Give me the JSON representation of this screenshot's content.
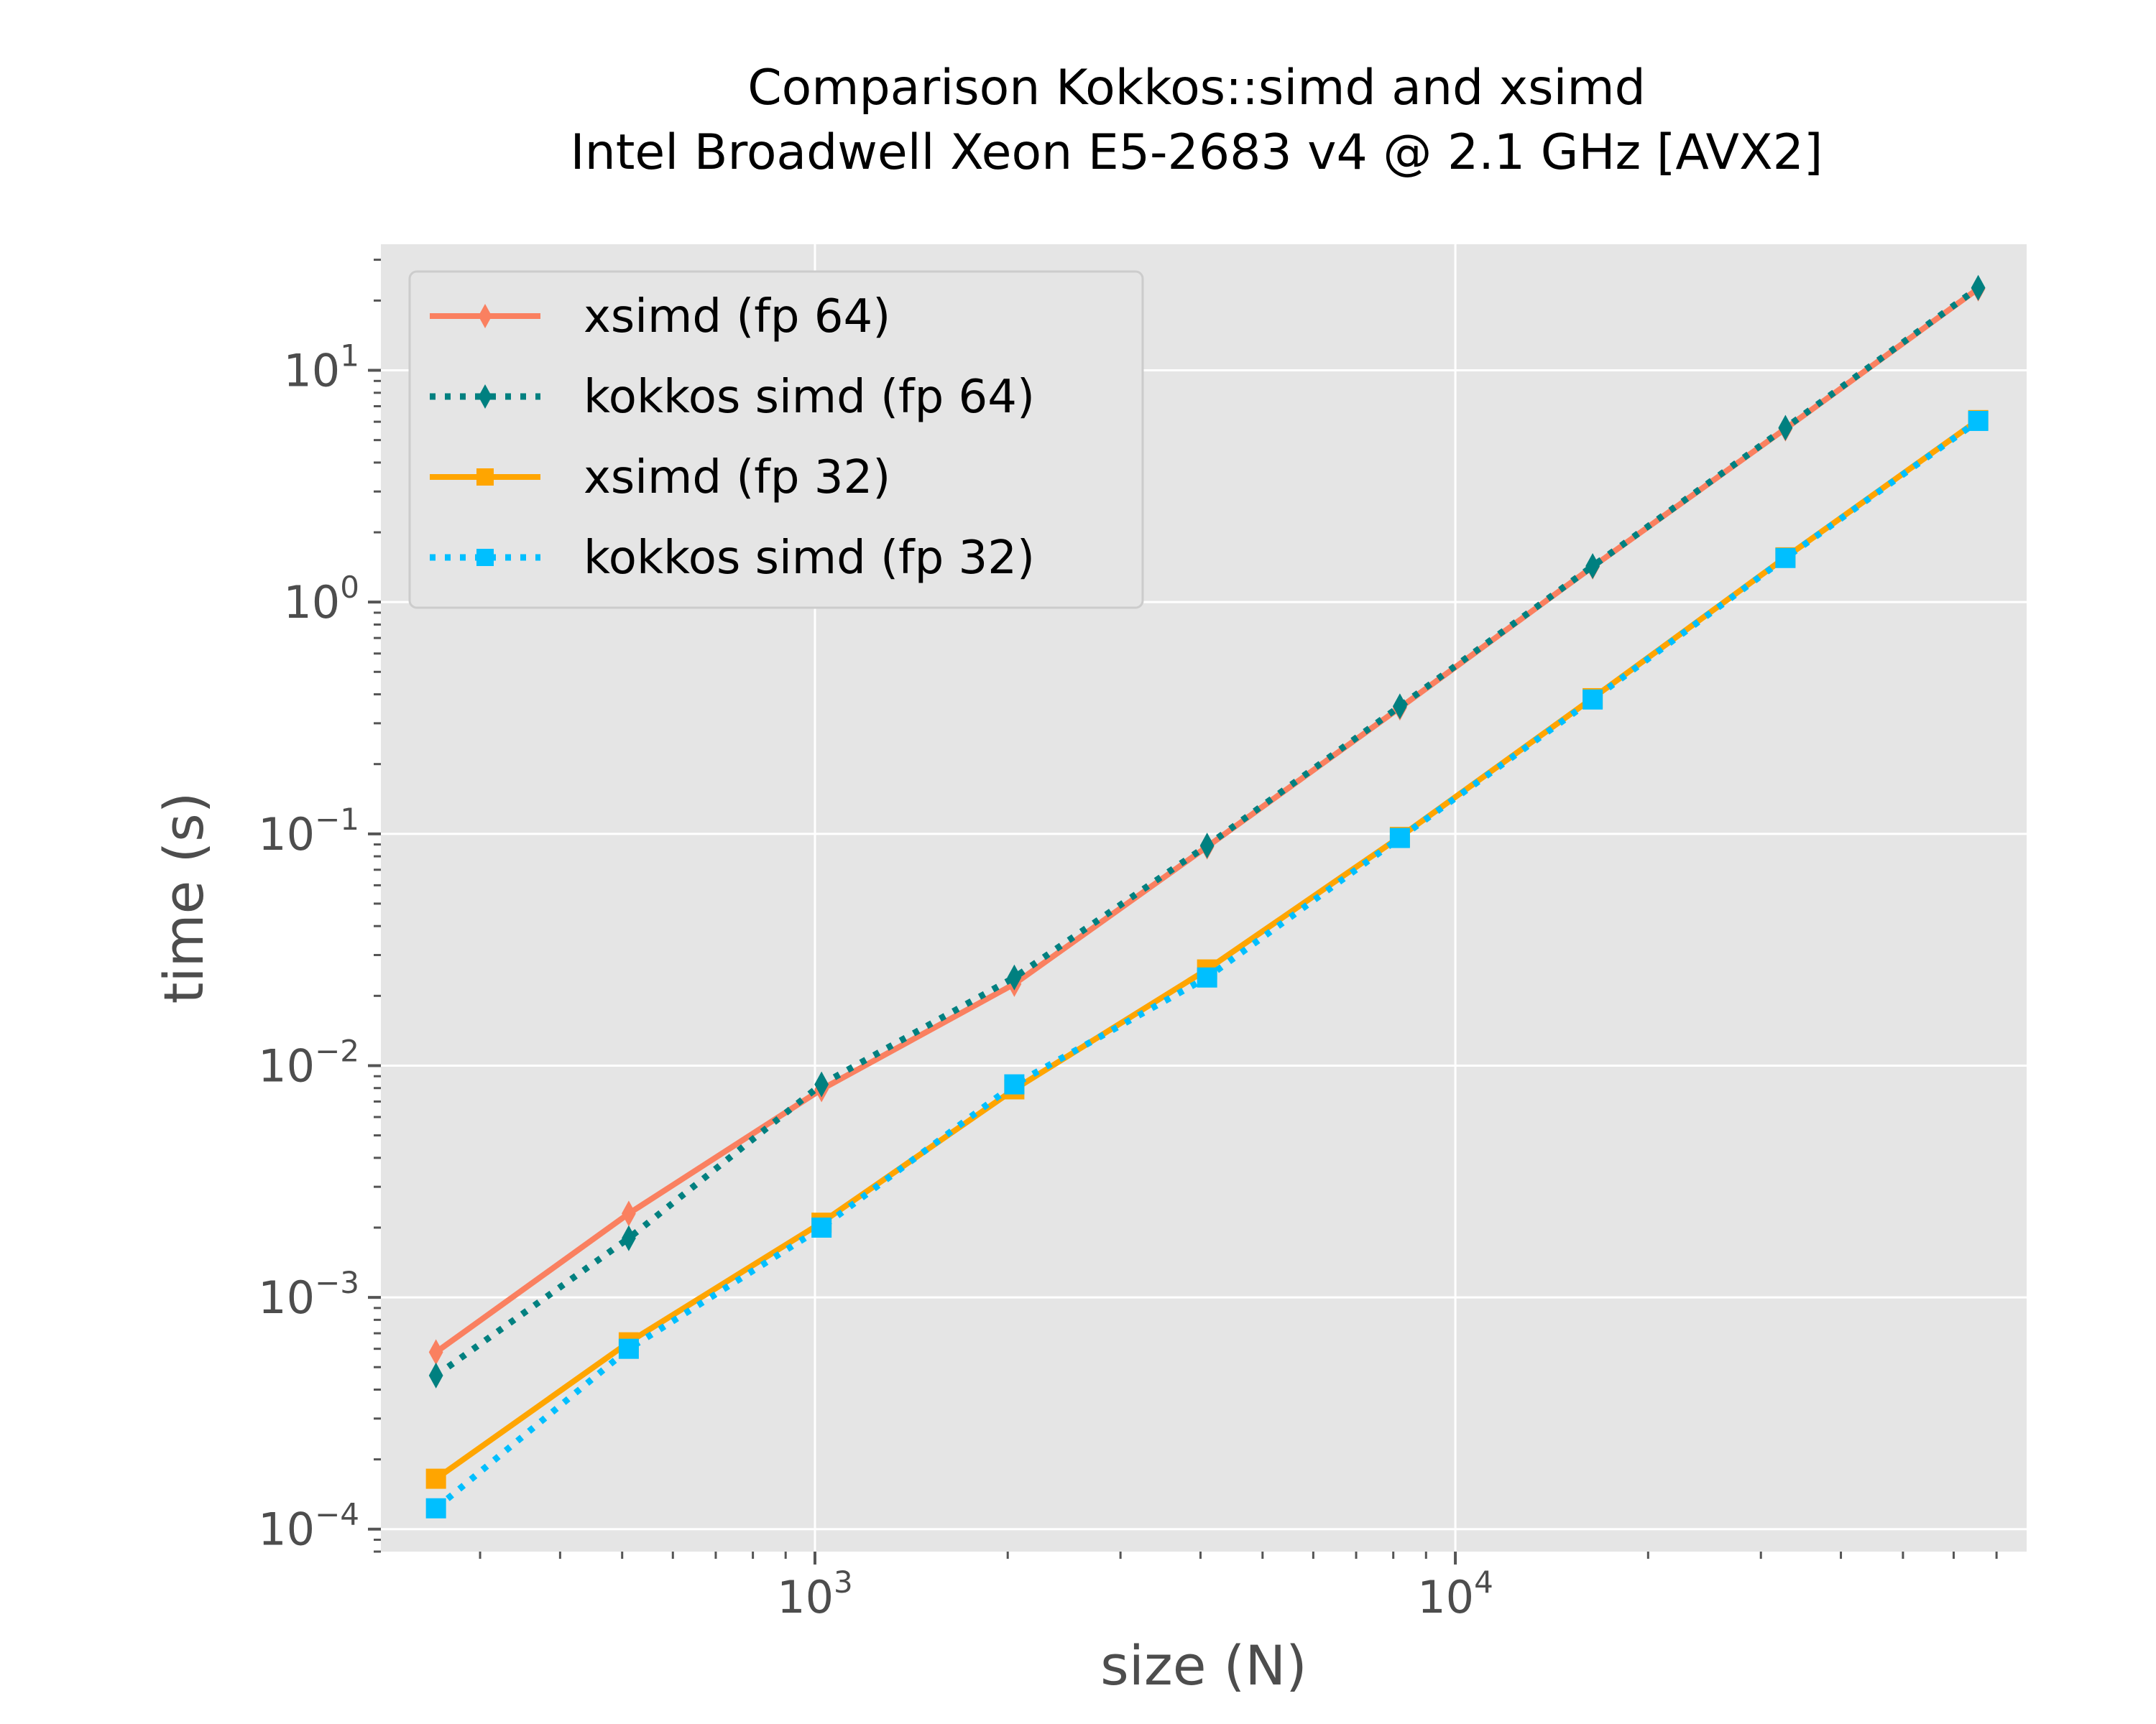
{
  "chart_data": {
    "type": "line",
    "title": "Comparison Kokkos::simd and xsimd",
    "subtitle": "Intel Broadwell Xeon E5-2683 v4 @ 2.1 GHz [AVX2]",
    "xlabel": "size (N)",
    "ylabel": "time (s)",
    "xscale": "log",
    "yscale": "log",
    "xlim": [
      210,
      78000
    ],
    "ylim": [
      8e-05,
      35
    ],
    "xticks": [
      {
        "value": 1000,
        "base": "10",
        "exp": "3"
      },
      {
        "value": 10000,
        "base": "10",
        "exp": "4"
      }
    ],
    "yticks": [
      {
        "value": 0.0001,
        "base": "10",
        "exp": "−4"
      },
      {
        "value": 0.001,
        "base": "10",
        "exp": "−3"
      },
      {
        "value": 0.01,
        "base": "10",
        "exp": "−2"
      },
      {
        "value": 0.1,
        "base": "10",
        "exp": "−1"
      },
      {
        "value": 1,
        "base": "10",
        "exp": "0"
      },
      {
        "value": 10,
        "base": "10",
        "exp": "1"
      }
    ],
    "grid": true,
    "legend_position": "top-left",
    "background": "#e5e5e5",
    "x": [
      256,
      512,
      1024,
      2048,
      4096,
      8192,
      16384,
      32768,
      65536
    ],
    "series": [
      {
        "name": "xsimd (fp 64)",
        "color": "#fa8060",
        "marker": "thin-diamond",
        "linestyle": "solid",
        "values": [
          0.00058,
          0.0023,
          0.0079,
          0.0225,
          0.088,
          0.35,
          1.42,
          5.6,
          22.5
        ]
      },
      {
        "name": "kokkos simd (fp 64)",
        "color": "#008080",
        "marker": "thin-diamond",
        "linestyle": "dotted",
        "values": [
          0.00046,
          0.0018,
          0.0083,
          0.024,
          0.089,
          0.355,
          1.43,
          5.65,
          22.7
        ]
      },
      {
        "name": "xsimd (fp 32)",
        "color": "#ffa500",
        "marker": "square",
        "linestyle": "solid",
        "values": [
          0.000165,
          0.00064,
          0.0021,
          0.0079,
          0.026,
          0.097,
          0.385,
          1.56,
          6.1
        ]
      },
      {
        "name": "kokkos simd (fp 32)",
        "color": "#00bfff",
        "marker": "square",
        "linestyle": "dotted",
        "values": [
          0.000123,
          0.0006,
          0.002,
          0.0083,
          0.024,
          0.096,
          0.38,
          1.55,
          6.05
        ]
      }
    ]
  }
}
